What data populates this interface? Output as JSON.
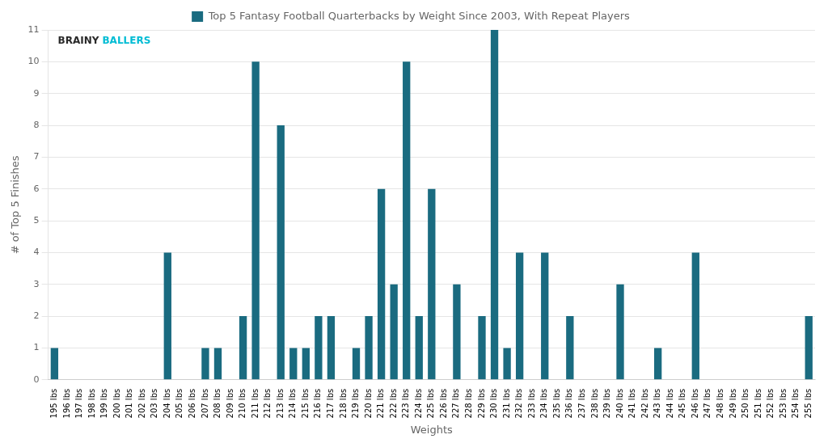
{
  "chart_data": {
    "type": "bar",
    "categories": [
      "195 lbs",
      "196 lbs",
      "197 lbs",
      "198 lbs",
      "199 lbs",
      "200 lbs",
      "201 lbs",
      "202 lbs",
      "203 lbs",
      "204 lbs",
      "205 lbs",
      "206 lbs",
      "207 lbs",
      "208 lbs",
      "209 lbs",
      "210 lbs",
      "211 lbs",
      "212 lbs",
      "213 lbs",
      "214 lbs",
      "215 lbs",
      "216 lbs",
      "217 lbs",
      "218 lbs",
      "219 lbs",
      "220 lbs",
      "221 lbs",
      "222 lbs",
      "223 lbs",
      "224 lbs",
      "225 lbs",
      "226 lbs",
      "227 lbs",
      "228 lbs",
      "229 lbs",
      "230 lbs",
      "231 lbs",
      "232 lbs",
      "233 lbs",
      "234 lbs",
      "235 lbs",
      "236 lbs",
      "237 lbs",
      "238 lbs",
      "239 lbs",
      "240 lbs",
      "241 lbs",
      "242 lbs",
      "243 lbs",
      "244 lbs",
      "245 lbs",
      "246 lbs",
      "247 lbs",
      "248 lbs",
      "249 lbs",
      "250 lbs",
      "251 lbs",
      "252 lbs",
      "253 lbs",
      "254 lbs",
      "255 lbs"
    ],
    "series": [
      {
        "name": "Top 5 Fantasy Football Quarterbacks by Weight Since 2003, With Repeat Players",
        "color": "#1a6b80",
        "values": [
          1,
          0,
          0,
          0,
          0,
          0,
          0,
          0,
          0,
          4,
          0,
          0,
          1,
          1,
          0,
          2,
          10,
          0,
          8,
          1,
          1,
          2,
          2,
          0,
          1,
          2,
          6,
          3,
          10,
          2,
          6,
          0,
          3,
          0,
          2,
          11,
          1,
          4,
          0,
          4,
          0,
          2,
          0,
          0,
          0,
          3,
          0,
          0,
          1,
          0,
          0,
          4,
          0,
          0,
          0,
          0,
          0,
          0,
          0,
          0,
          2
        ]
      }
    ],
    "xlabel": "Weights",
    "ylabel": "# of Top 5 Finishes",
    "ylim": [
      0,
      11
    ],
    "yticks": [
      0,
      1,
      2,
      3,
      4,
      5,
      6,
      7,
      8,
      9,
      10,
      11
    ],
    "grid": true,
    "legend": "top",
    "annotations": [
      {
        "text": "BRAINY",
        "color": "#2a2a2a"
      },
      {
        "text": "BALLERS",
        "color": "#00bcd4"
      }
    ]
  }
}
